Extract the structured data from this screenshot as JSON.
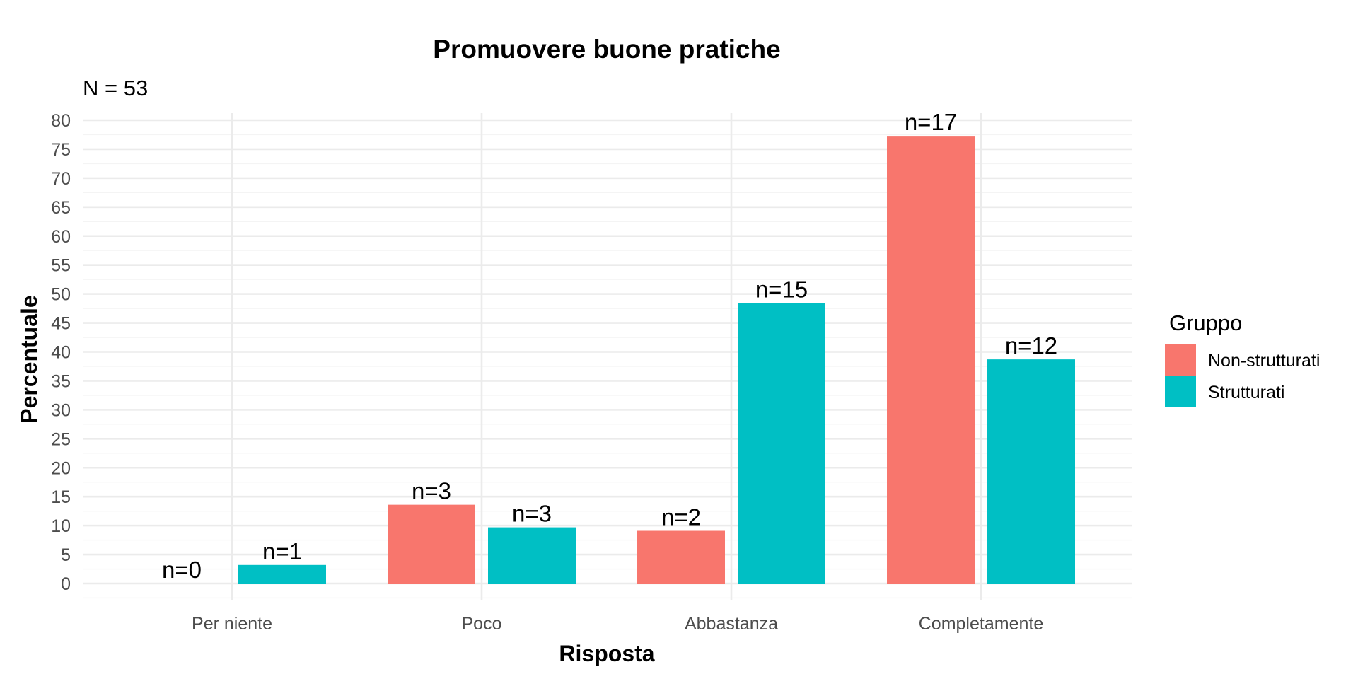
{
  "chart_data": {
    "type": "bar",
    "title": "Promuovere buone pratiche",
    "subtitle": "N = 53",
    "xlabel": "Risposta",
    "ylabel": "Percentuale",
    "categories": [
      "Per niente",
      "Poco",
      "Abbastanza",
      "Completamente"
    ],
    "series": [
      {
        "name": "Non-strutturati",
        "color": "#F8766D",
        "values": [
          0,
          13.6,
          9.1,
          77.3
        ],
        "labels": [
          "n=0",
          "n=3",
          "n=2",
          "n=17"
        ]
      },
      {
        "name": "Strutturati",
        "color": "#00BFC4",
        "values": [
          3.2,
          9.7,
          48.4,
          38.7
        ],
        "labels": [
          "n=1",
          "n=3",
          "n=15",
          "n=12"
        ]
      }
    ],
    "ylim": [
      0,
      80
    ],
    "yticks": [
      0,
      5,
      10,
      15,
      20,
      25,
      30,
      35,
      40,
      45,
      50,
      55,
      60,
      65,
      70,
      75,
      80
    ],
    "grid": true,
    "legend": {
      "title": "Gruppo",
      "position": "right"
    }
  }
}
